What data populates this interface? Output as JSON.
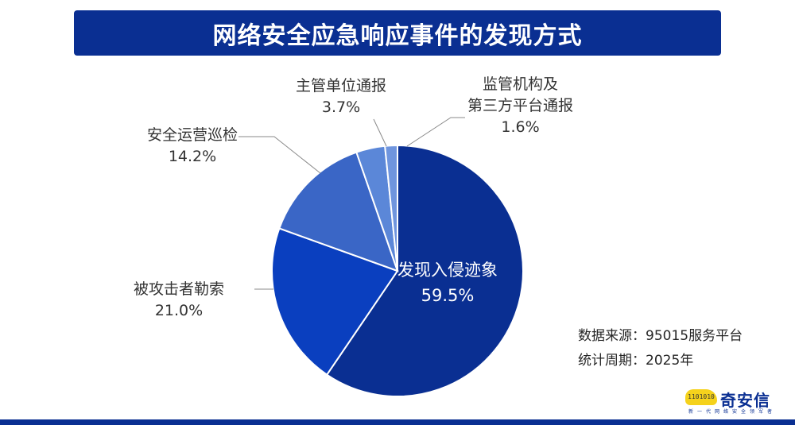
{
  "title": "网络安全应急响应事件的发现方式",
  "chart_data": {
    "type": "pie",
    "title": "网络安全应急响应事件的发现方式",
    "start_angle": "12 o'clock, clockwise",
    "categories": [
      "发现入侵迹象",
      "被攻击者勒索",
      "安全运营巡检",
      "主管单位通报",
      "监管机构及第三方平台通报"
    ],
    "values": [
      59.5,
      21.0,
      14.2,
      3.7,
      1.6
    ],
    "labels": [
      "59.5%",
      "21.0%",
      "14.2%",
      "3.7%",
      "1.6%"
    ],
    "colors": [
      "#0a2f92",
      "#0a3fbf",
      "#3a66c6",
      "#5b87d8",
      "#6f95de"
    ],
    "legend": "none (callout labels)"
  },
  "labels": {
    "invasion": {
      "name": "发现入侵迹象",
      "pct": "59.5%"
    },
    "ransom": {
      "name": "被攻击者勒索",
      "pct": "21.0%"
    },
    "patrol": {
      "name": "安全运营巡检",
      "pct": "14.2%"
    },
    "authority": {
      "name": "主管单位通报",
      "pct": "3.7%"
    },
    "regulator": {
      "line1": "监管机构及",
      "line2": "第三方平台通报",
      "pct": "1.6%"
    }
  },
  "meta": {
    "source": "数据来源：95015服务平台",
    "period": "统计周期：2025年"
  },
  "logo": {
    "mark": "1101010",
    "name": "奇安信",
    "slogan": "新一代网络安全领军者"
  }
}
